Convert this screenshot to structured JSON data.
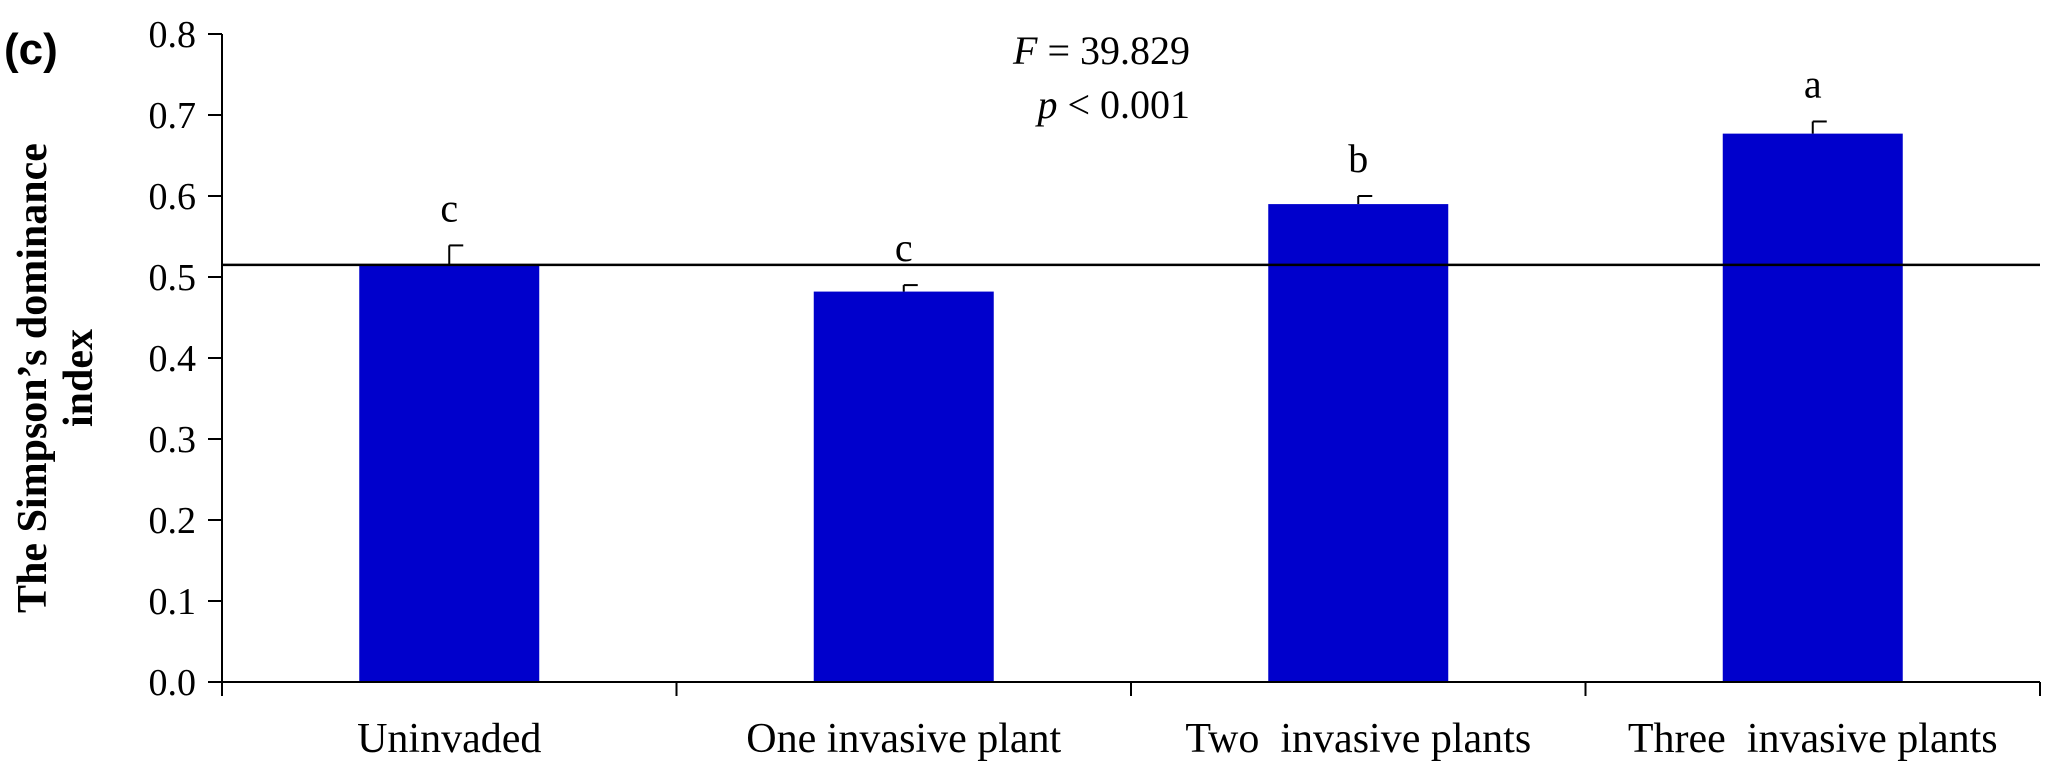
{
  "panel_label": "(c)",
  "stats": {
    "f_symbol": "F",
    "f_rest": " = 39.829",
    "p_symbol": "p",
    "p_rest": " < 0.001"
  },
  "chart_data": {
    "type": "bar",
    "title": "",
    "xlabel": "",
    "ylabel_line1": "The Simpson’s dominance",
    "ylabel_line2": "index",
    "categories": [
      "Uninvaded",
      "One invasive plant",
      "Two  invasive plants",
      "Three  invasive plants"
    ],
    "values": [
      0.515,
      0.482,
      0.59,
      0.677
    ],
    "errors": [
      0.024,
      0.008,
      0.01,
      0.015
    ],
    "significance": [
      "c",
      "c",
      "b",
      "a"
    ],
    "reference_line": 0.515,
    "ylim": [
      0,
      0.8
    ],
    "yticks": [
      "0.0",
      "0.1",
      "0.2",
      "0.3",
      "0.4",
      "0.5",
      "0.6",
      "0.7",
      "0.8"
    ],
    "grid": false,
    "legend": "none",
    "bar_color": "#0000CC"
  }
}
